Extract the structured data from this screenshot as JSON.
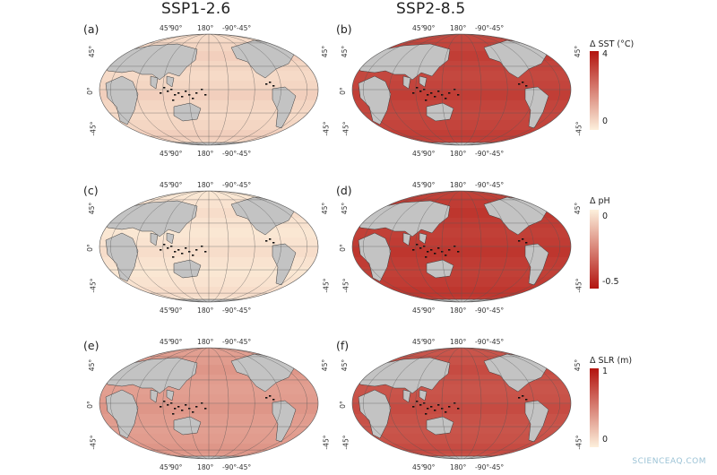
{
  "columns": [
    "SSP1-2.6",
    "SSP2-8.5"
  ],
  "panels": [
    {
      "label": "(a)",
      "variable": "SST",
      "scenario": "SSP1-2.6",
      "intensity": 0.12
    },
    {
      "label": "(b)",
      "variable": "SST",
      "scenario": "SSP2-8.5",
      "intensity": 0.78
    },
    {
      "label": "(c)",
      "variable": "pH",
      "scenario": "SSP1-2.6",
      "intensity": 0.06
    },
    {
      "label": "(d)",
      "variable": "pH",
      "scenario": "SSP2-8.5",
      "intensity": 0.82
    },
    {
      "label": "(e)",
      "variable": "SLR",
      "scenario": "SSP1-2.6",
      "intensity": 0.38
    },
    {
      "label": "(f)",
      "variable": "SLR",
      "scenario": "SSP2-8.5",
      "intensity": 0.72
    }
  ],
  "lon_ticks": [
    "45°",
    "90°",
    "180°",
    "-90°",
    "-45°"
  ],
  "lat_ticks": [
    "45°",
    "0°",
    "-45°"
  ],
  "colorbars": [
    {
      "title": "Δ SST (°C)",
      "max_label": "4",
      "min_label": "0",
      "reversed": false
    },
    {
      "title": "Δ pH",
      "max_label": "0",
      "min_label": "-0.5",
      "reversed": true
    },
    {
      "title": "Δ SLR (m)",
      "max_label": "1",
      "min_label": "0",
      "reversed": false
    }
  ],
  "colors": {
    "land": "#c3c3c3",
    "coast": "#3a3a3a",
    "grid": "#555555",
    "ocean_low": "#fdf0dc",
    "ocean_high": "#b3140f"
  },
  "watermark": "SCIENCEAQ.COM"
}
